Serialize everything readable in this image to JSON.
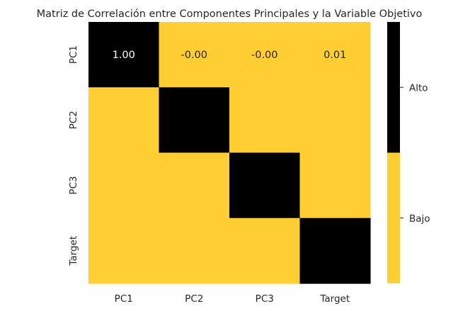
{
  "chart_data": {
    "type": "heatmap",
    "title": "Matriz de Correlación entre Componentes Principales y la Variable Objetivo",
    "x_labels": [
      "PC1",
      "PC2",
      "PC3",
      "Target"
    ],
    "y_labels": [
      "PC1",
      "PC2",
      "PC3",
      "Target"
    ],
    "values": [
      [
        1.0,
        0.0,
        0.0,
        0.01
      ],
      [
        0.0,
        1.0,
        0.0,
        0.0
      ],
      [
        0.0,
        0.0,
        1.0,
        0.0
      ],
      [
        0.01,
        0.0,
        0.0,
        1.0
      ]
    ],
    "annotations": [
      [
        "1.00",
        "-0.00",
        "-0.00",
        "0.01"
      ],
      [
        null,
        null,
        null,
        null
      ],
      [
        null,
        null,
        null,
        null
      ],
      [
        null,
        null,
        null,
        null
      ]
    ],
    "colors": {
      "high": "#000000",
      "low": "#FFCE33"
    },
    "colorbar": {
      "labels": [
        "Alto",
        "Bajo"
      ]
    },
    "annotation_colors": {
      "on_high": "#ffffff",
      "on_low": "#262626"
    }
  }
}
